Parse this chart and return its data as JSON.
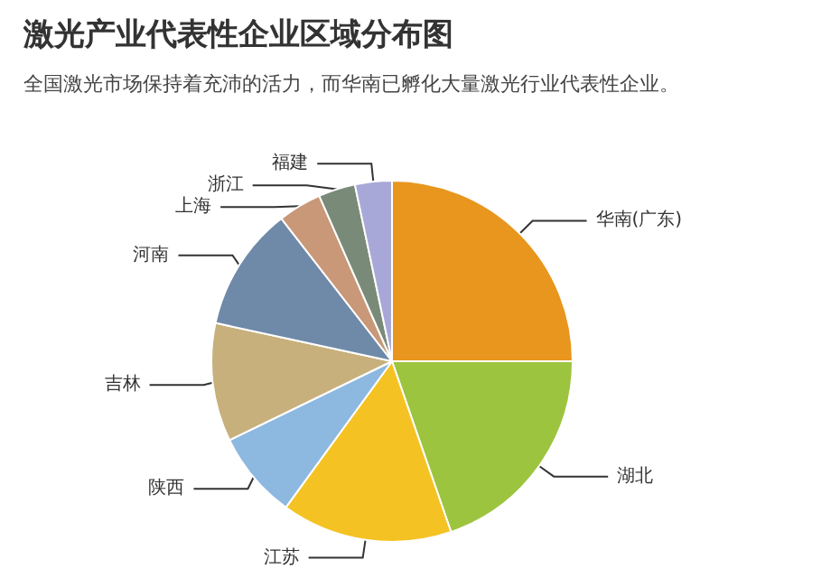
{
  "chart_data": {
    "type": "pie",
    "title": "激光产业代表性企业区域分布图",
    "subtitle": "全国激光市场保持着充沛的活力，而华南已孵化大量激光行业代表性企业。",
    "categories": [
      "华南(广东)",
      "湖北",
      "江苏",
      "陕西",
      "吉林",
      "河南",
      "上海",
      "浙江",
      "福建"
    ],
    "values": [
      25,
      19.7,
      15.3,
      7.8,
      10.6,
      11.1,
      3.9,
      3.3,
      3.3
    ],
    "colors": [
      "#e8961e",
      "#9dc43f",
      "#f5c223",
      "#8db8e0",
      "#c8b07c",
      "#6f8aa8",
      "#c89878",
      "#7a8a78",
      "#a8a8d8"
    ],
    "legend": false
  }
}
